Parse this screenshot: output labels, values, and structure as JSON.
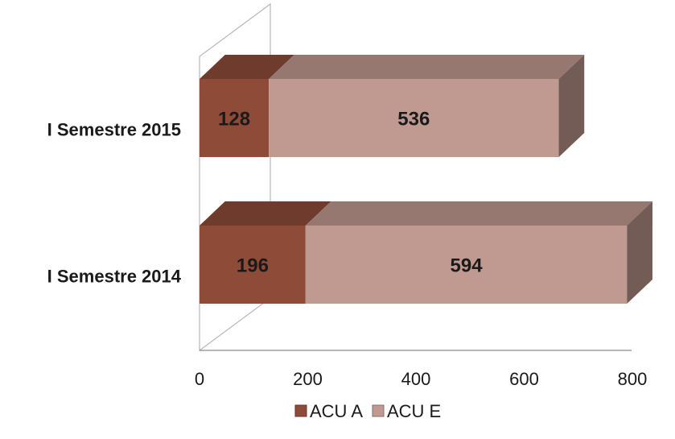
{
  "chart_data": {
    "type": "bar",
    "orientation": "horizontal",
    "stacked": true,
    "three_d": true,
    "categories": [
      "I Semestre 2015",
      "I Semestre 2014"
    ],
    "series": [
      {
        "name": "ACU A",
        "values": [
          128,
          196
        ],
        "color": "#8e4b38",
        "label_color": "#1a1a1a"
      },
      {
        "name": "ACU E",
        "values": [
          536,
          594
        ],
        "color": "#c09a90",
        "label_color": "#1a1a1a"
      }
    ],
    "x_ticks": [
      "0",
      "200",
      "400",
      "600",
      "800"
    ],
    "xlim": [
      0,
      800
    ],
    "legend": {
      "position": "bottom"
    },
    "grid": false
  }
}
